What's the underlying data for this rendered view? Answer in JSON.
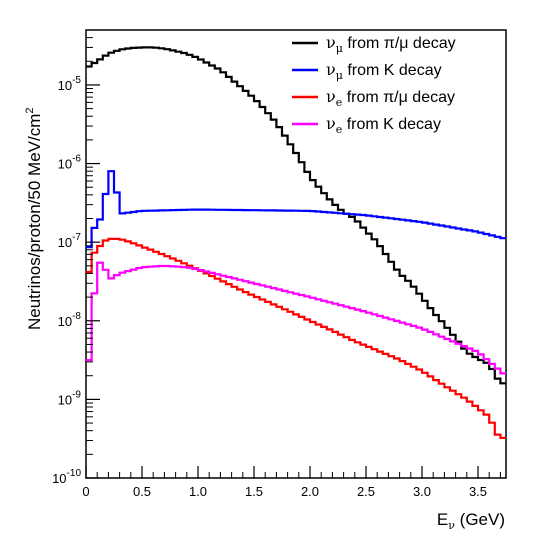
{
  "chart_data": {
    "type": "line",
    "style": "step-histogram",
    "title": "",
    "xlabel": {
      "main": "E",
      "sub": "ν",
      "rest": " (GeV)"
    },
    "ylabel": {
      "main": "Neutrinos/proton/50 MeV/cm",
      "sup": "2"
    },
    "xlim": [
      0,
      3.75
    ],
    "ylim": [
      1e-10,
      5e-05
    ],
    "yscale": "log",
    "x_ticks": [
      "0",
      "0.5",
      "1.0",
      "1.5",
      "2.0",
      "2.5",
      "3.0",
      "3.5"
    ],
    "x_tick_values": [
      0,
      0.5,
      1.0,
      1.5,
      2.0,
      2.5,
      3.0,
      3.5
    ],
    "y_ticks": [
      {
        "base": "10",
        "exp": "-10",
        "value": 1e-10
      },
      {
        "base": "10",
        "exp": "-9",
        "value": 1e-09
      },
      {
        "base": "10",
        "exp": "-8",
        "value": 1e-08
      },
      {
        "base": "10",
        "exp": "-7",
        "value": 1e-07
      },
      {
        "base": "10",
        "exp": "-6",
        "value": 1e-06
      },
      {
        "base": "10",
        "exp": "-5",
        "value": 1e-05
      }
    ],
    "grid": false,
    "legend_position": "top-right",
    "bin_width": 0.05,
    "series": [
      {
        "name": "νμ from π/μ decay",
        "nu": "ν",
        "flavor": "μ",
        "rest": " from π/μ decay",
        "color": "#000000",
        "points": [
          [
            0,
            5e-06
          ],
          [
            0.02,
            1.7e-05
          ],
          [
            0.1,
            2e-05
          ],
          [
            0.2,
            2.5e-05
          ],
          [
            0.3,
            2.8e-05
          ],
          [
            0.4,
            2.95e-05
          ],
          [
            0.5,
            3e-05
          ],
          [
            0.6,
            3e-05
          ],
          [
            0.7,
            2.9e-05
          ],
          [
            0.8,
            2.7e-05
          ],
          [
            0.9,
            2.5e-05
          ],
          [
            1.0,
            2.2e-05
          ],
          [
            1.2,
            1.55e-05
          ],
          [
            1.4,
            9e-06
          ],
          [
            1.5,
            6.8e-06
          ],
          [
            1.6,
            4.8e-06
          ],
          [
            1.7,
            3.3e-06
          ],
          [
            1.8,
            2e-06
          ],
          [
            1.9,
            1.2e-06
          ],
          [
            2.0,
            6.8e-07
          ],
          [
            2.1,
            4.6e-07
          ],
          [
            2.2,
            3.2e-07
          ],
          [
            2.3,
            2.4e-07
          ],
          [
            2.4,
            2e-07
          ],
          [
            2.5,
            1.4e-07
          ],
          [
            2.6,
            1e-07
          ],
          [
            2.7,
            6.3e-08
          ],
          [
            2.8,
            4e-08
          ],
          [
            2.9,
            3e-08
          ],
          [
            3.0,
            2e-08
          ],
          [
            3.1,
            1.3e-08
          ],
          [
            3.2,
            9e-09
          ],
          [
            3.3,
            6e-09
          ],
          [
            3.4,
            4e-09
          ],
          [
            3.5,
            3.3e-09
          ],
          [
            3.6,
            2.8e-09
          ],
          [
            3.7,
            1.6e-09
          ]
        ]
      },
      {
        "name": "νμ from K decay",
        "nu": "ν",
        "flavor": "μ",
        "rest": " from K decay",
        "color": "#0000ff",
        "points": [
          [
            0,
            5e-08
          ],
          [
            0.04,
            1.2e-07
          ],
          [
            0.1,
            1.8e-07
          ],
          [
            0.15,
            2.1e-07
          ],
          [
            0.2,
            8e-07
          ],
          [
            0.25,
            8e-07
          ],
          [
            0.3,
            2.3e-07
          ],
          [
            0.5,
            2.5e-07
          ],
          [
            1.0,
            2.6e-07
          ],
          [
            1.5,
            2.55e-07
          ],
          [
            2.0,
            2.5e-07
          ],
          [
            2.5,
            2.2e-07
          ],
          [
            3.0,
            1.8e-07
          ],
          [
            3.5,
            1.35e-07
          ],
          [
            3.75,
            1.1e-07
          ]
        ]
      },
      {
        "name": "νe from π/μ decay",
        "nu": "ν",
        "flavor": "e",
        "rest": " from π/μ decay",
        "color": "#ff0000",
        "points": [
          [
            0,
            2e-08
          ],
          [
            0.04,
            6.5e-08
          ],
          [
            0.1,
            8e-08
          ],
          [
            0.15,
            1e-07
          ],
          [
            0.2,
            1.1e-07
          ],
          [
            0.3,
            1.1e-07
          ],
          [
            0.4,
            1e-07
          ],
          [
            0.5,
            8.8e-08
          ],
          [
            0.6,
            7.8e-08
          ],
          [
            0.8,
            6e-08
          ],
          [
            1.0,
            4.5e-08
          ],
          [
            1.2,
            3.3e-08
          ],
          [
            1.4,
            2.4e-08
          ],
          [
            1.6,
            1.8e-08
          ],
          [
            1.8,
            1.35e-08
          ],
          [
            2.0,
            1e-08
          ],
          [
            2.2,
            7.5e-09
          ],
          [
            2.4,
            5.5e-09
          ],
          [
            2.6,
            4.2e-09
          ],
          [
            2.8,
            3.2e-09
          ],
          [
            3.0,
            2.3e-09
          ],
          [
            3.2,
            1.5e-09
          ],
          [
            3.4,
            1e-09
          ],
          [
            3.6,
            6e-10
          ],
          [
            3.7,
            3e-10
          ],
          [
            3.75,
            3.5e-10
          ]
        ]
      },
      {
        "name": "νe from K decay",
        "nu": "ν",
        "flavor": "e",
        "rest": " from K decay",
        "color": "#ff00ff",
        "points": [
          [
            0,
            1e-09
          ],
          [
            0.05,
            1e-08
          ],
          [
            0.1,
            5e-08
          ],
          [
            0.15,
            6e-08
          ],
          [
            0.2,
            3.3e-08
          ],
          [
            0.3,
            4e-08
          ],
          [
            0.5,
            4.8e-08
          ],
          [
            0.7,
            5e-08
          ],
          [
            0.9,
            4.8e-08
          ],
          [
            1.0,
            4.5e-08
          ],
          [
            1.5,
            3e-08
          ],
          [
            2.0,
            2e-08
          ],
          [
            2.5,
            1.3e-08
          ],
          [
            3.0,
            8e-09
          ],
          [
            3.5,
            4e-09
          ],
          [
            3.75,
            2e-09
          ]
        ]
      }
    ]
  }
}
